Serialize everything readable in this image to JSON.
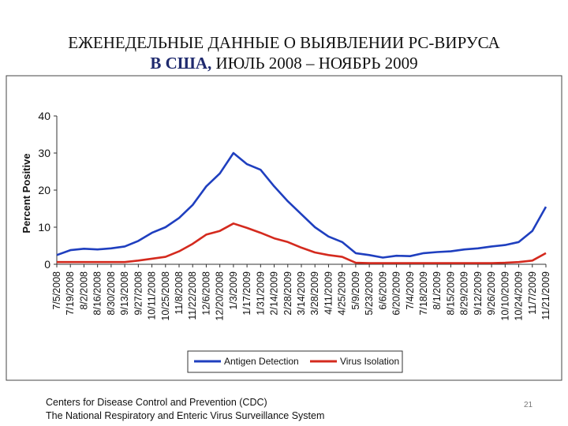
{
  "slide": {
    "title_line1": "ЕЖЕНЕДЕЛЬНЫЕ ДАННЫЕ О ВЫЯВЛЕНИИ РС-ВИРУСА",
    "title_line2_highlight": "В США,",
    "title_line2_rest": " ИЮЛЬ 2008 – НОЯБРЬ 2009",
    "footer_line1": "Centers for Disease Control and Prevention (CDC)",
    "footer_line2": "The National Respiratory and Enteric Virus Surveillance System",
    "page_number": "21"
  },
  "chart_data": {
    "type": "line",
    "title": "",
    "xlabel": "",
    "ylabel": "Percent Positive",
    "ylim": [
      0,
      40
    ],
    "yticks": [
      0,
      10,
      20,
      30,
      40
    ],
    "grid": false,
    "legend_position": "bottom",
    "x": [
      "7/5/2008",
      "7/19/2008",
      "8/2/2008",
      "8/16/2008",
      "8/30/2008",
      "9/13/2008",
      "9/27/2008",
      "10/11/2008",
      "10/25/2008",
      "11/8/2008",
      "11/22/2008",
      "12/6/2008",
      "12/20/2008",
      "1/3/2009",
      "1/17/2009",
      "1/31/2009",
      "2/14/2009",
      "2/28/2009",
      "3/14/2009",
      "3/28/2009",
      "4/11/2009",
      "4/25/2009",
      "5/9/2009",
      "5/23/2009",
      "6/6/2009",
      "6/20/2009",
      "7/4/2009",
      "7/18/2009",
      "8/1/2009",
      "8/15/2009",
      "8/29/2009",
      "9/12/2009",
      "9/26/2009",
      "10/10/2009",
      "10/24/2009",
      "11/7/2009",
      "11/21/2009"
    ],
    "series": [
      {
        "name": "Antigen Detection",
        "color": "#1f3fbf",
        "values": [
          2.5,
          3.8,
          4.2,
          4.0,
          4.3,
          4.8,
          6.3,
          8.5,
          10.0,
          12.5,
          16.0,
          21.0,
          24.5,
          30.0,
          27.0,
          25.5,
          21.0,
          17.0,
          13.5,
          10.0,
          7.5,
          6.0,
          3.0,
          2.5,
          1.8,
          2.3,
          2.2,
          3.0,
          3.3,
          3.5,
          4.0,
          4.3,
          4.8,
          5.2,
          6.0,
          9.0,
          15.5
        ]
      },
      {
        "name": "Virus Isolation",
        "color": "#d42a1e",
        "values": [
          0.6,
          0.6,
          0.6,
          0.6,
          0.6,
          0.6,
          1.0,
          1.5,
          2.0,
          3.5,
          5.5,
          8.0,
          9.0,
          11.0,
          9.8,
          8.5,
          7.0,
          6.0,
          4.5,
          3.2,
          2.5,
          2.0,
          0.4,
          0.3,
          0.3,
          0.3,
          0.3,
          0.3,
          0.3,
          0.3,
          0.3,
          0.3,
          0.3,
          0.4,
          0.6,
          1.0,
          3.0
        ]
      }
    ]
  }
}
